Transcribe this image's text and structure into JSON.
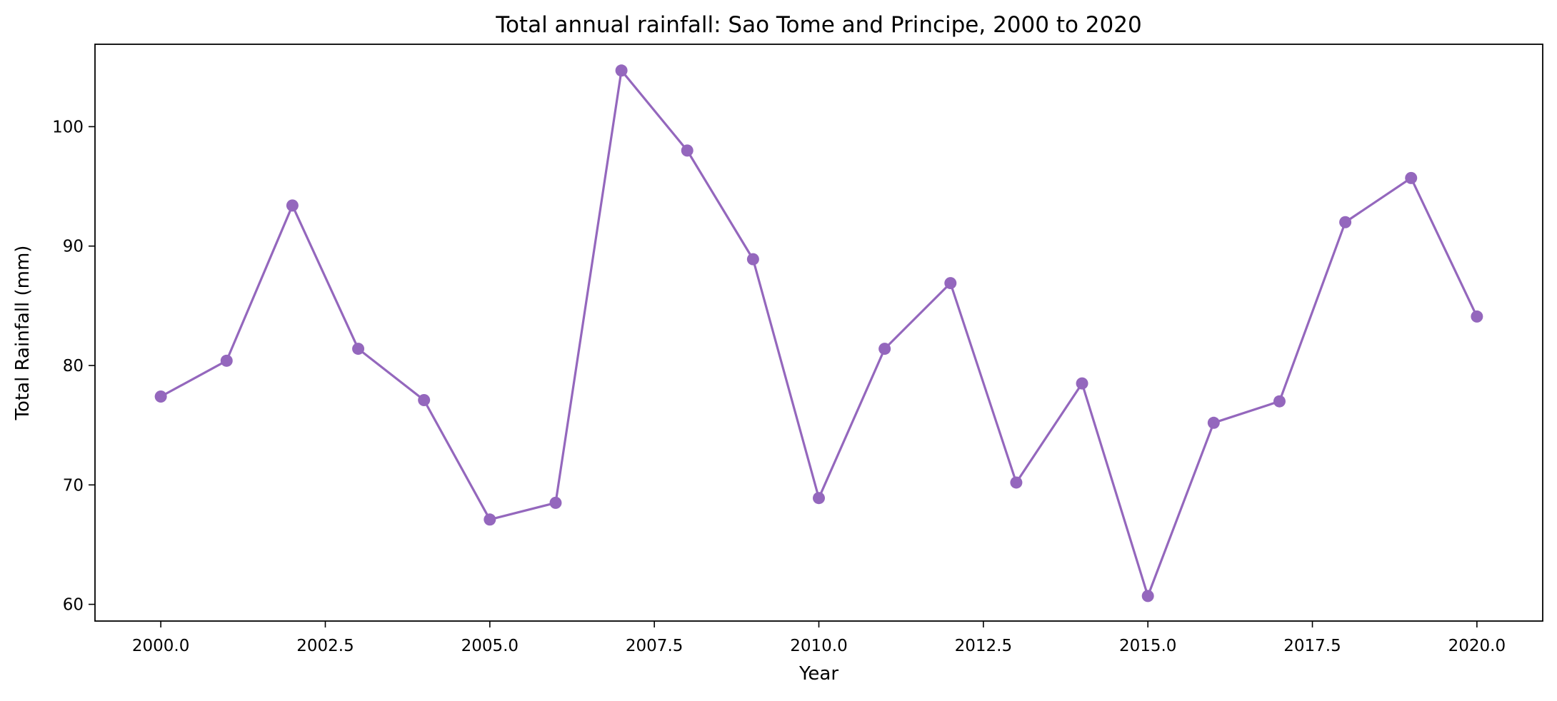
{
  "chart_data": {
    "type": "line",
    "title": "Total annual rainfall: Sao Tome and Principe, 2000 to 2020",
    "xlabel": "Year",
    "ylabel": "Total Rainfall (mm)",
    "xlim": [
      1999.0,
      2021.0
    ],
    "ylim": [
      58.6,
      106.9
    ],
    "xticks": [
      2000.0,
      2002.5,
      2005.0,
      2007.5,
      2010.0,
      2012.5,
      2015.0,
      2017.5,
      2020.0
    ],
    "xtick_labels": [
      "2000.0",
      "2002.5",
      "2005.0",
      "2007.5",
      "2010.0",
      "2012.5",
      "2015.0",
      "2017.5",
      "2020.0"
    ],
    "yticks": [
      60,
      70,
      80,
      90,
      100
    ],
    "ytick_labels": [
      "60",
      "70",
      "80",
      "90",
      "100"
    ],
    "grid": false,
    "series": [
      {
        "color": "#9467bd",
        "marker": "circle",
        "x": [
          2000,
          2001,
          2002,
          2003,
          2004,
          2005,
          2006,
          2007,
          2008,
          2009,
          2010,
          2011,
          2012,
          2013,
          2014,
          2015,
          2016,
          2017,
          2018,
          2019,
          2020
        ],
        "y": [
          77.4,
          80.4,
          93.4,
          81.4,
          77.1,
          67.1,
          68.5,
          104.7,
          98.0,
          88.9,
          68.9,
          81.4,
          86.9,
          70.2,
          78.5,
          60.7,
          75.2,
          77.0,
          92.0,
          95.7,
          84.1
        ]
      }
    ]
  }
}
